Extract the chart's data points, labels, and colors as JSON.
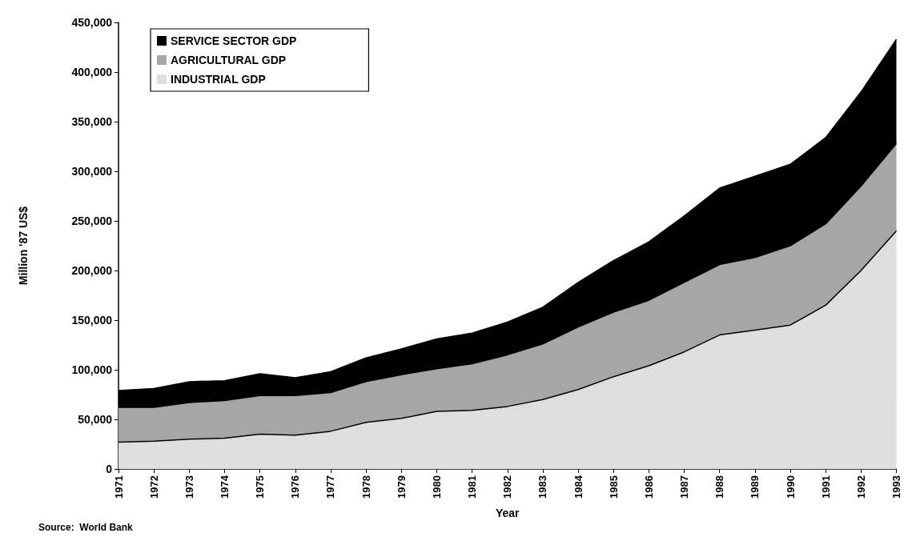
{
  "chart_data": {
    "type": "area",
    "stacked": true,
    "xlabel": "Year",
    "ylabel": "Million '87 US$",
    "categories": [
      "1971",
      "1972",
      "1973",
      "1974",
      "1975",
      "1976",
      "1977",
      "1978",
      "1979",
      "1980",
      "1981",
      "1982",
      "1983",
      "1984",
      "1985",
      "1986",
      "1987",
      "1988",
      "1989",
      "1990",
      "1991",
      "1992",
      "1993"
    ],
    "series": [
      {
        "name": "INDUSTRIAL GDP",
        "color": "#dedede",
        "values": [
          27000,
          28000,
          30000,
          31000,
          35000,
          34000,
          38000,
          47000,
          51000,
          58000,
          59000,
          63000,
          70000,
          80000,
          93000,
          104000,
          118000,
          135000,
          140000,
          145000,
          165000,
          200000,
          240000
        ]
      },
      {
        "name": "AGRICULTURAL GDP",
        "color": "#a6a6a6",
        "values": [
          35000,
          34000,
          37000,
          38000,
          39000,
          40000,
          39000,
          41000,
          44000,
          43000,
          47000,
          52000,
          56000,
          63000,
          65000,
          66000,
          70000,
          71000,
          73000,
          80000,
          82000,
          85000,
          88000
        ]
      },
      {
        "name": "SERVICE SECTOR GDP",
        "color": "#000000",
        "values": [
          17000,
          19000,
          21000,
          20000,
          22000,
          18000,
          21000,
          24000,
          26000,
          30000,
          31000,
          33000,
          37000,
          45000,
          52000,
          59000,
          67000,
          77000,
          82000,
          82000,
          87000,
          95000,
          105000
        ]
      }
    ],
    "ylim": [
      0,
      450000
    ],
    "yticks": [
      0,
      {
        "value": 50000,
        "label": "50,000"
      },
      {
        "value": 100000,
        "label": "100,000"
      },
      {
        "value": 150000,
        "label": "150,000"
      },
      {
        "value": 200000,
        "label": "200,000"
      },
      {
        "value": 250000,
        "label": "250,000"
      },
      {
        "value": 300000,
        "label": "300,000"
      },
      {
        "value": 350000,
        "label": "350,000"
      },
      {
        "value": 400000,
        "label": "400,000"
      },
      {
        "value": 450000,
        "label": "450,000"
      }
    ],
    "grid": false,
    "legend": "top left",
    "annotations": [
      "Source:  World Bank"
    ]
  }
}
